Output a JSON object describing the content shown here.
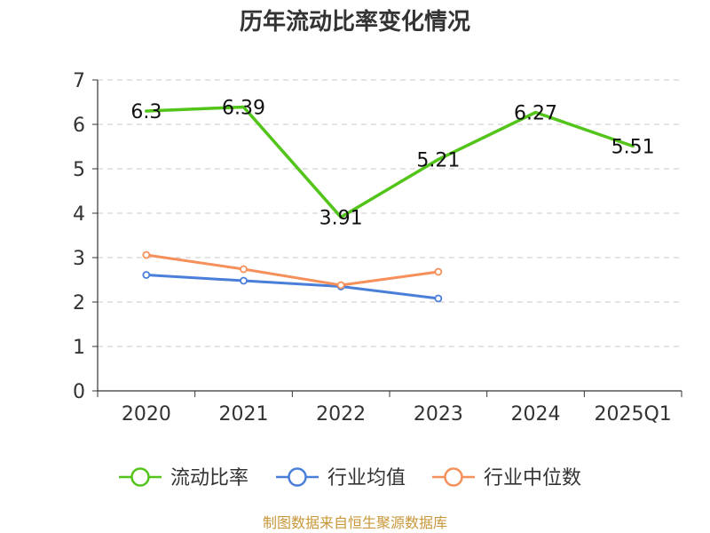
{
  "chart_data": {
    "type": "line",
    "title": "历年流动比率变化情况",
    "xlabel": "",
    "ylabel": "",
    "categories": [
      "2020",
      "2021",
      "2022",
      "2023",
      "2024",
      "2025Q1"
    ],
    "ylim": [
      0,
      7
    ],
    "yticks": [
      "0",
      "1",
      "2",
      "3",
      "4",
      "5",
      "6",
      "7"
    ],
    "grid": true,
    "legend_position": "bottom",
    "series": [
      {
        "name": "流动比率",
        "color": "#52c41a",
        "values": [
          6.3,
          6.39,
          3.91,
          5.21,
          6.27,
          5.51
        ],
        "labels": [
          "6.3",
          "6.39",
          "3.91",
          "5.21",
          "6.27",
          "5.51"
        ],
        "show_labels": true,
        "show_markers": false
      },
      {
        "name": "行业均值",
        "color": "#4a7fd9",
        "values": [
          2.61,
          2.48,
          2.35,
          2.08,
          null,
          null
        ],
        "show_labels": false,
        "show_markers": true
      },
      {
        "name": "行业中位数",
        "color": "#f5905a",
        "values": [
          3.06,
          2.74,
          2.38,
          2.68,
          null,
          null
        ],
        "show_labels": false,
        "show_markers": true
      }
    ],
    "source": "制图数据来自恒生聚源数据库"
  }
}
